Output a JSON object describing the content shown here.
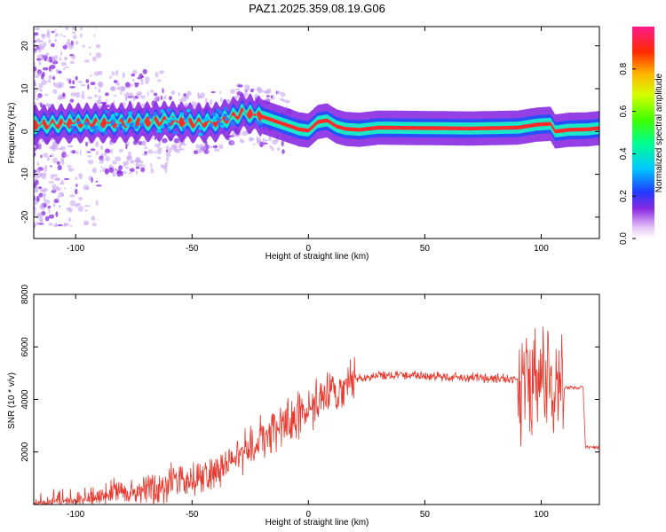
{
  "title": "PAZ1.2025.359.08.19.G06",
  "colors": {
    "snr_line": "#e8372c",
    "spectrum_ridge": "#ff2a2a",
    "spectrum_band": "#18e8c8",
    "spectrum_outer": "#8a2be2",
    "spectrum_noise": "#c9a6f2"
  },
  "chart_data": [
    {
      "type": "heatmap",
      "id": "spectrogram",
      "xlabel": "Height of straight line (km)",
      "ylabel": "Frequency (Hz)",
      "xlim": [
        -118,
        125
      ],
      "ylim": [
        -25,
        24.5
      ],
      "xticks": [
        -100,
        -50,
        0,
        50,
        100
      ],
      "yticks": [
        -20,
        -10,
        0,
        10,
        20
      ],
      "xtick_labels": [
        "-100",
        "-50",
        "0",
        "50",
        "100"
      ],
      "ytick_labels": [
        "-20",
        "-10",
        "0",
        "10",
        "20"
      ],
      "ridge": {
        "x": [
          -118,
          -100,
          -80,
          -60,
          -50,
          -40,
          -32,
          -28,
          -20,
          -12,
          -4,
          0,
          4,
          8,
          12,
          16,
          22,
          30,
          50,
          70,
          90,
          98,
          104,
          106,
          112,
          120,
          125
        ],
        "freq": [
          1.5,
          2,
          2,
          2.5,
          2,
          2.2,
          3.5,
          4.5,
          3.5,
          2,
          0.5,
          0.2,
          2.2,
          2.6,
          1.2,
          0.6,
          0.4,
          0.9,
          0.8,
          0.7,
          0.9,
          1.6,
          1.8,
          0,
          0.4,
          0.5,
          0.8
        ]
      },
      "colorbar": {
        "label": "Normalized spectral amplitude",
        "range": [
          0,
          1
        ],
        "ticks": [
          0.0,
          0.2,
          0.4,
          0.6,
          0.8
        ],
        "tick_labels": [
          "0.0",
          "0.2",
          "0.4",
          "0.6",
          "0.8"
        ]
      }
    },
    {
      "type": "line",
      "id": "snr",
      "xlabel": "Height of straight line (km)",
      "ylabel": "SNR (10 * v/v)",
      "xlim": [
        -118,
        125
      ],
      "ylim": [
        0,
        8000
      ],
      "xticks": [
        -100,
        -50,
        0,
        50,
        100
      ],
      "yticks": [
        2000,
        4000,
        6000,
        8000
      ],
      "xtick_labels": [
        "-100",
        "-50",
        "0",
        "50",
        "100"
      ],
      "ytick_labels": [
        "2000",
        "4000",
        "6000",
        "8000"
      ],
      "series": [
        {
          "name": "SNR",
          "x": [
            -118,
            -110,
            -100,
            -90,
            -80,
            -70,
            -60,
            -50,
            -40,
            -35,
            -30,
            -25,
            -20,
            -15,
            -10,
            -5,
            0,
            5,
            10,
            15,
            20,
            25,
            30,
            40,
            50,
            60,
            70,
            80,
            85,
            90,
            95,
            100,
            105,
            110,
            118,
            119,
            125
          ],
          "y": [
            100,
            200,
            300,
            500,
            650,
            750,
            900,
            1000,
            1250,
            1500,
            2050,
            2200,
            2500,
            2750,
            3000,
            3300,
            3700,
            3900,
            4150,
            4450,
            4800,
            4850,
            4900,
            4950,
            4900,
            4850,
            4850,
            4800,
            4800,
            4750,
            4700,
            4650,
            4550,
            4450,
            4450,
            2200,
            2150
          ]
        }
      ]
    }
  ]
}
